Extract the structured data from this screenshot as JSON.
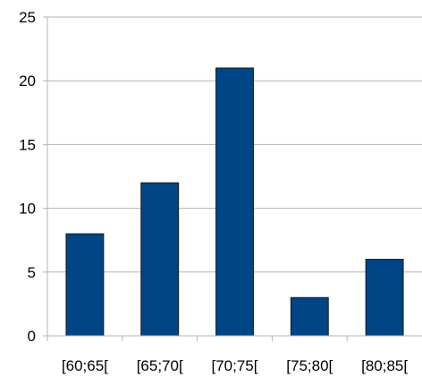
{
  "chart_data": {
    "type": "bar",
    "categories": [
      "[60;65[",
      "[65;70[",
      "[70;75[",
      "[75;80[",
      "[80;85["
    ],
    "series": [
      {
        "values": [
          8,
          12,
          21,
          3,
          6
        ]
      }
    ],
    "title": "",
    "xlabel": "",
    "ylabel": "",
    "ylim": [
      0,
      25
    ],
    "yticks": [
      0,
      5,
      10,
      15,
      20,
      25
    ],
    "grid": "horizontal",
    "legend": "none",
    "colors": {
      "bar_fill": "#004586",
      "bar_stroke": "#1a1a1a",
      "grid": "#b3b3b3",
      "axis": "#b3b3b3"
    }
  }
}
